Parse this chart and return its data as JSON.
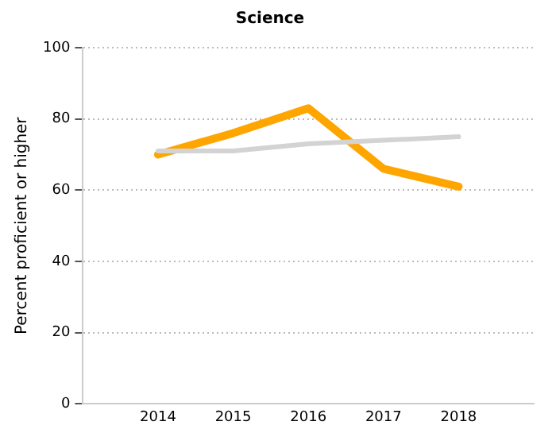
{
  "chart_data": {
    "type": "line",
    "title": "Science",
    "ylabel": "Percent proficient or higher",
    "x": [
      2014,
      2015,
      2016,
      2017,
      2018
    ],
    "xlim": [
      2013,
      2019
    ],
    "xticks": [
      2014,
      2015,
      2016,
      2017,
      2018
    ],
    "ylim": [
      0,
      100
    ],
    "yticks": [
      0,
      20,
      40,
      60,
      80,
      100
    ],
    "grid": "y",
    "legend": false,
    "marker": "none",
    "line_style": "solid",
    "series": [
      {
        "color": "#d3d3d3",
        "values": [
          71,
          71,
          73,
          74,
          75
        ]
      },
      {
        "color": "#ffa500",
        "values": [
          70,
          76,
          83,
          66,
          61
        ]
      }
    ]
  }
}
